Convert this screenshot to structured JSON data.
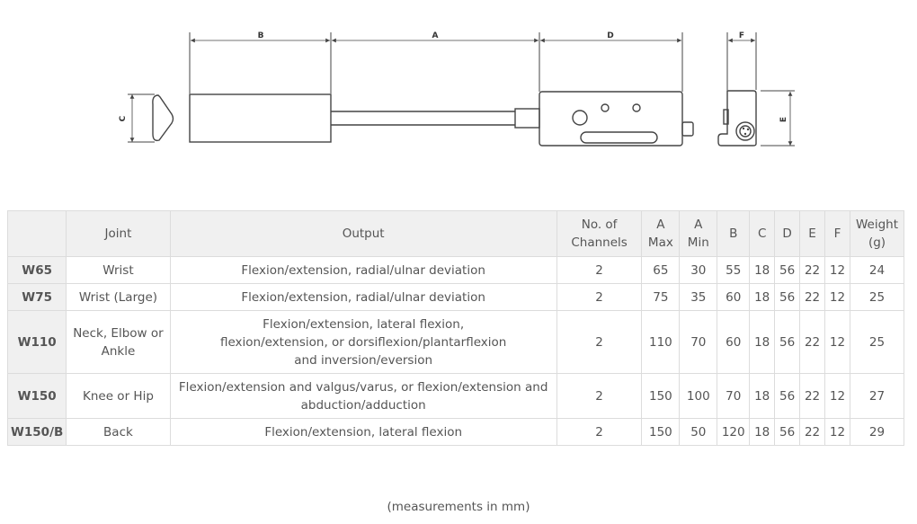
{
  "diagram": {
    "dimension_labels": {
      "a": "A",
      "b": "B",
      "c": "C",
      "d": "D",
      "e": "E",
      "f": "F"
    }
  },
  "table": {
    "headers": {
      "model": "",
      "joint": "Joint",
      "output": "Output",
      "channels": "No. of\nChannels",
      "a_max": "A\nMax",
      "a_min": "A\nMin",
      "b": "B",
      "c": "C",
      "d": "D",
      "e": "E",
      "f": "F",
      "weight": "Weight\n(g)"
    },
    "rows": [
      {
        "model": "W65",
        "joint": "Wrist",
        "output": "Flexion/extension, radial/ulnar deviation",
        "channels": "2",
        "a_max": "65",
        "a_min": "30",
        "b": "55",
        "c": "18",
        "d": "56",
        "e": "22",
        "f": "12",
        "weight": "24"
      },
      {
        "model": "W75",
        "joint": "Wrist (Large)",
        "output": "Flexion/extension, radial/ulnar deviation",
        "channels": "2",
        "a_max": "75",
        "a_min": "35",
        "b": "60",
        "c": "18",
        "d": "56",
        "e": "22",
        "f": "12",
        "weight": "25"
      },
      {
        "model": "W110",
        "joint": "Neck, Elbow or\nAnkle",
        "output": "Flexion/extension, lateral flexion,\nflexion/extension, or dorsiflexion/plantarflexion\nand inversion/eversion",
        "channels": "2",
        "a_max": "110",
        "a_min": "70",
        "b": "60",
        "c": "18",
        "d": "56",
        "e": "22",
        "f": "12",
        "weight": "25"
      },
      {
        "model": "W150",
        "joint": "Knee or Hip",
        "output": "Flexion/extension and valgus/varus, or flexion/extension and\nabduction/adduction",
        "channels": "2",
        "a_max": "150",
        "a_min": "100",
        "b": "70",
        "c": "18",
        "d": "56",
        "e": "22",
        "f": "12",
        "weight": "27"
      },
      {
        "model": "W150/B",
        "joint": "Back",
        "output": "Flexion/extension, lateral flexion",
        "channels": "2",
        "a_max": "150",
        "a_min": "50",
        "b": "120",
        "c": "18",
        "d": "56",
        "e": "22",
        "f": "12",
        "weight": "29"
      }
    ]
  },
  "footnote": "(measurements in mm)"
}
